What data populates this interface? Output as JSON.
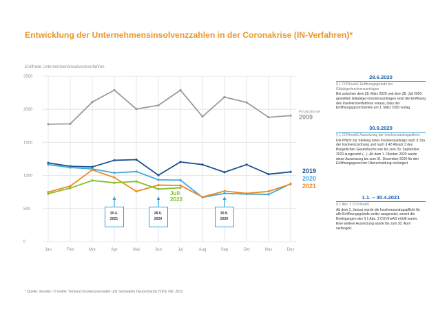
{
  "title": "Entwicklung der Unternehmensinsolvenzzahlen in der Coronakrise (IN-Verfahren)*",
  "footnote": "* Quelle: destatis / © Grafik: Verband Insolvenzverwalter und Sachwalter Deutschlands (VID)/ Okt. 2022",
  "annotations": [
    {
      "text": "30.4.\n2021",
      "month_index": 3
    },
    {
      "text": "28.6.\n2020",
      "month_index": 5
    },
    {
      "text": "30.9.\n2020",
      "month_index": 8
    }
  ],
  "side_panel": [
    {
      "heading": "28.6.2020",
      "sub": "§ 1 COVInsAG Eröffnungsgründe bei Gläubigerinsolvenzanträgen",
      "text": "Bei zwischen dem 28. März 2020 und dem 28. Juli 2020 gestellten Gläubiger-Insolvenzanträgen setzt die Eröffnung des Insolvenzverfahrens voraus, dass der Eröffnungsgrund bereits am 1. März 2020 vorlag."
    },
    {
      "heading": "30.9.2020",
      "sub": "§ 1 COVInsAG Aussetzung der Insolvenzantragspflicht",
      "text": "Die Pflicht zur Stellung eines Insolvenzantrags nach § 15a der Insolvenzordnung und nach § 42 Absatz 2 des Bürgerlichen Gesetzbuchs war bis zum 30. September 2020 ausgesetzt (...). Ab dem 1. Oktober 2020 wurde diese Aussetzung bis zum 31. Dezember 2020 für den Eröffnungsgrund der Überschuldung verlängert."
    },
    {
      "heading": "1.1. – 30.4.2021",
      "sub": "§ 1 Abs. 3 COVInsAG",
      "text": "Ab dem 1. Januar wurde die Insolvenzantragspflicht für alle Eröffnungsgründe weiter ausgesetzt, soweit die Bedingungen des § 1 Abs. 3 COVInsAG erfüllt waren. Eine weitere Aussetzung wurde bis zum 30. April verlängert."
    }
  ],
  "colors": {
    "title": "#e8962a",
    "grid": "#e3e5e8",
    "axis_text": "#8a8f96",
    "annotation": "#2f9fd6",
    "panel_heading": "#1a5da7"
  },
  "chart_data": {
    "type": "line",
    "title": "Entwicklung der Unternehmensinsolvenzzahlen in der Coronakrise (IN-Verfahren)*",
    "subtitle": "Eröffnete Unternehmensinsolvenzverfahren",
    "xlabel": "",
    "ylabel": "",
    "categories": [
      "Jan",
      "Feb",
      "Mrz",
      "Apr",
      "Mai",
      "Jun",
      "Jul",
      "Aug",
      "Sep",
      "Okt",
      "Nov",
      "Dez"
    ],
    "ylim": [
      0,
      2500
    ],
    "yticks": [
      0,
      500,
      1000,
      1500,
      2000,
      2500
    ],
    "grid": true,
    "series": [
      {
        "name": "Finanzkrise 2009",
        "color": "#9a9a9a",
        "values": [
          1775,
          1780,
          2110,
          2290,
          2005,
          2060,
          2290,
          1890,
          2185,
          2105,
          1880,
          1905
        ]
      },
      {
        "name": "2019",
        "color": "#1a4f8f",
        "values": [
          1190,
          1140,
          1130,
          1230,
          1240,
          1005,
          1205,
          1165,
          1050,
          1165,
          1020,
          1055
        ]
      },
      {
        "name": "2020",
        "color": "#3ea8dc",
        "values": [
          1165,
          1120,
          1100,
          1040,
          1060,
          935,
          930,
          670,
          730,
          720,
          715,
          875
        ]
      },
      {
        "name": "2021",
        "color": "#ec8a1e",
        "values": [
          750,
          840,
          1085,
          970,
          760,
          855,
          850,
          675,
          765,
          730,
          760,
          870
        ]
      },
      {
        "name": "Juli 2022",
        "color": "#84bd2c",
        "values": [
          725,
          810,
          925,
          890,
          910,
          795,
          815,
          null,
          null,
          null,
          null,
          null
        ]
      }
    ]
  }
}
